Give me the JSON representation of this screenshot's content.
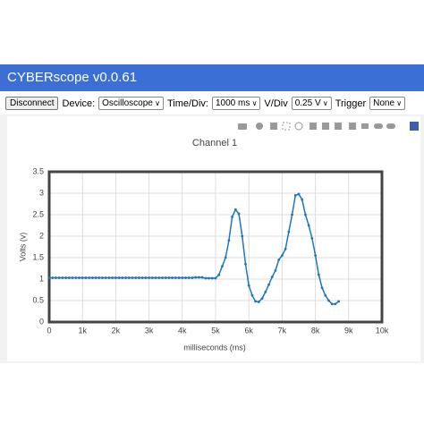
{
  "header": {
    "title": "CYBERscope v0.0.61"
  },
  "toolbar": {
    "button": "Disconnect",
    "device_label": "Device:",
    "device": "Oscilloscope",
    "time_label": "Time/Div:",
    "time": "1000 ms",
    "volt_label": "V/Div",
    "volt": "0.25 V",
    "trigger_label": "Trigger",
    "trigger": "None"
  },
  "chart_data": {
    "type": "line",
    "title": "Channel 1",
    "x_label": "milliseconds (ms)",
    "y_label": "Volts (v)",
    "x": [
      0,
      100,
      200,
      300,
      400,
      500,
      600,
      700,
      800,
      900,
      1000,
      1100,
      1200,
      1300,
      1400,
      1500,
      1600,
      1700,
      1800,
      1900,
      2000,
      2100,
      2200,
      2300,
      2400,
      2500,
      2600,
      2700,
      2800,
      2900,
      3000,
      3100,
      3200,
      3300,
      3400,
      3500,
      3600,
      3700,
      3800,
      3900,
      4000,
      4100,
      4200,
      4300,
      4400,
      4500,
      4600,
      4700,
      4800,
      4900,
      5000,
      5100,
      5200,
      5300,
      5400,
      5500,
      5600,
      5700,
      5800,
      5900,
      6000,
      6100,
      6200,
      6300,
      6400,
      6500,
      6600,
      6700,
      6800,
      6900,
      7000,
      7100,
      7200,
      7300,
      7400,
      7500,
      7600,
      7700,
      7800,
      7900,
      8000,
      8100,
      8200,
      8300,
      8400,
      8500,
      8600,
      8700
    ],
    "series": [
      {
        "color": "#1f77b4",
        "values": [
          1.03,
          1.03,
          1.03,
          1.03,
          1.03,
          1.03,
          1.03,
          1.03,
          1.03,
          1.03,
          1.03,
          1.03,
          1.03,
          1.03,
          1.03,
          1.03,
          1.03,
          1.03,
          1.03,
          1.03,
          1.03,
          1.03,
          1.03,
          1.03,
          1.03,
          1.03,
          1.03,
          1.03,
          1.03,
          1.03,
          1.03,
          1.03,
          1.03,
          1.03,
          1.03,
          1.03,
          1.03,
          1.03,
          1.03,
          1.03,
          1.03,
          1.03,
          1.03,
          1.03,
          1.04,
          1.04,
          1.04,
          1.02,
          1.02,
          1.02,
          1.02,
          1.1,
          1.3,
          1.5,
          1.9,
          2.45,
          2.62,
          2.52,
          2.0,
          1.35,
          0.85,
          0.62,
          0.48,
          0.47,
          0.55,
          0.7,
          0.87,
          1.05,
          1.2,
          1.45,
          1.55,
          1.7,
          2.1,
          2.5,
          2.95,
          2.98,
          2.85,
          2.5,
          2.25,
          1.95,
          1.55,
          1.1,
          0.8,
          0.62,
          0.5,
          0.42,
          0.42,
          0.48
        ]
      }
    ],
    "xlim": [
      0,
      10000
    ],
    "xticks": [
      0,
      {
        "value": 1000,
        "label": "1k"
      },
      {
        "value": 2000,
        "label": "2k"
      },
      {
        "value": 3000,
        "label": "3k"
      },
      {
        "value": 4000,
        "label": "4k"
      },
      {
        "value": 5000,
        "label": "5k"
      },
      {
        "value": 6000,
        "label": "6k"
      },
      {
        "value": 7000,
        "label": "7k"
      },
      {
        "value": 8000,
        "label": "8k"
      },
      {
        "value": 9000,
        "label": "9k"
      },
      {
        "value": 10000,
        "label": "10k"
      }
    ],
    "ylim": [
      0,
      3.5
    ],
    "yticks": [
      0,
      0.5,
      1,
      1.5,
      2,
      2.5,
      3,
      3.5
    ],
    "grid": true
  }
}
